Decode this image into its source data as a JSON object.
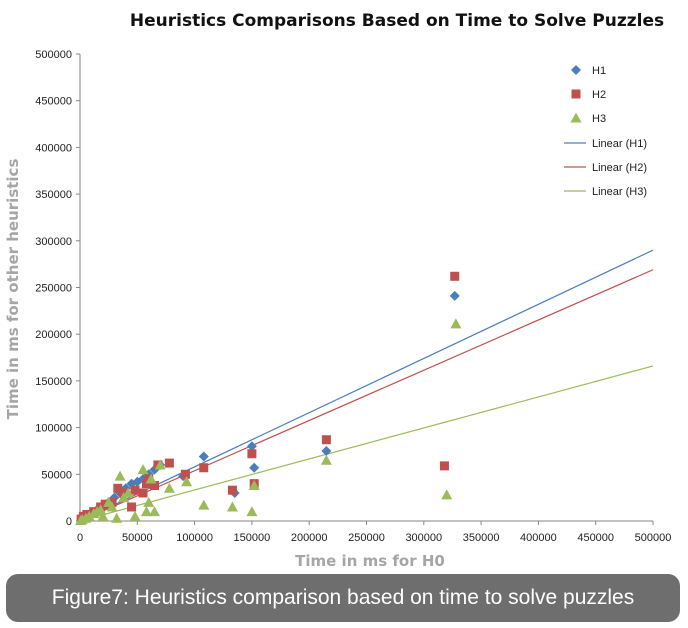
{
  "chart_data": {
    "type": "scatter",
    "title": "Heuristics Comparisons Based on Time to Solve Puzzles",
    "xlabel": "Time in ms for H0",
    "ylabel": "Time in ms for other heuristics",
    "xlim": [
      0,
      500000
    ],
    "ylim": [
      0,
      500000
    ],
    "x_ticks": [
      0,
      50000,
      100000,
      150000,
      200000,
      250000,
      300000,
      350000,
      400000,
      450000,
      500000
    ],
    "y_ticks": [
      0,
      50000,
      100000,
      150000,
      200000,
      250000,
      300000,
      350000,
      400000,
      450000,
      500000
    ],
    "x_tick_labels": [
      "0",
      "50000",
      "100000",
      "150000",
      "200000",
      "250000",
      "300000",
      "350000",
      "400000",
      "450000",
      "500000"
    ],
    "y_tick_labels": [
      "0",
      "50000",
      "100000",
      "150000",
      "200000",
      "250000",
      "300000",
      "350000",
      "400000",
      "450000",
      "500000"
    ],
    "grid": false,
    "legend_position": "top-right",
    "series": [
      {
        "name": "H1",
        "marker": "diamond",
        "color": "#4a7ebb",
        "points": [
          [
            2000,
            1500
          ],
          [
            5000,
            4000
          ],
          [
            8000,
            6000
          ],
          [
            10000,
            9000
          ],
          [
            15000,
            12000
          ],
          [
            20000,
            15000
          ],
          [
            25000,
            20000
          ],
          [
            30000,
            25000
          ],
          [
            35000,
            30000
          ],
          [
            40000,
            35000
          ],
          [
            45000,
            40000
          ],
          [
            50000,
            42000
          ],
          [
            55000,
            45000
          ],
          [
            60000,
            50000
          ],
          [
            65000,
            55000
          ],
          [
            70000,
            60000
          ],
          [
            90000,
            48000
          ],
          [
            108000,
            69000
          ],
          [
            135000,
            30000
          ],
          [
            150000,
            80000
          ],
          [
            152000,
            57000
          ],
          [
            215000,
            75000
          ],
          [
            327000,
            241000
          ]
        ]
      },
      {
        "name": "H2",
        "marker": "square",
        "color": "#c0504d",
        "points": [
          [
            1000,
            2000
          ],
          [
            3000,
            5000
          ],
          [
            6000,
            7000
          ],
          [
            12000,
            10000
          ],
          [
            18000,
            15000
          ],
          [
            22000,
            18000
          ],
          [
            28000,
            20000
          ],
          [
            33000,
            35000
          ],
          [
            38000,
            30000
          ],
          [
            45000,
            15000
          ],
          [
            48000,
            33000
          ],
          [
            55000,
            30000
          ],
          [
            58000,
            40000
          ],
          [
            60000,
            45000
          ],
          [
            65000,
            38000
          ],
          [
            68000,
            60000
          ],
          [
            78000,
            62000
          ],
          [
            92000,
            50000
          ],
          [
            108000,
            57000
          ],
          [
            133000,
            33000
          ],
          [
            150000,
            72000
          ],
          [
            152000,
            40000
          ],
          [
            215000,
            87000
          ],
          [
            318000,
            59000
          ],
          [
            327000,
            262000
          ]
        ]
      },
      {
        "name": "H3",
        "marker": "triangle",
        "color": "#9bbb59",
        "points": [
          [
            500,
            500
          ],
          [
            2000,
            1500
          ],
          [
            5000,
            3000
          ],
          [
            8000,
            5000
          ],
          [
            12000,
            8000
          ],
          [
            15000,
            10000
          ],
          [
            18000,
            12000
          ],
          [
            20000,
            5000
          ],
          [
            25000,
            20000
          ],
          [
            28000,
            15000
          ],
          [
            32000,
            3000
          ],
          [
            35000,
            48000
          ],
          [
            38000,
            25000
          ],
          [
            42000,
            30000
          ],
          [
            48000,
            5000
          ],
          [
            55000,
            55000
          ],
          [
            58000,
            10000
          ],
          [
            60000,
            20000
          ],
          [
            62000,
            45000
          ],
          [
            65000,
            10000
          ],
          [
            70000,
            60000
          ],
          [
            78000,
            35000
          ],
          [
            93000,
            42000
          ],
          [
            108000,
            17000
          ],
          [
            133000,
            15000
          ],
          [
            150000,
            10000
          ],
          [
            152000,
            38000
          ],
          [
            215000,
            65000
          ],
          [
            320000,
            28000
          ],
          [
            328000,
            211000
          ]
        ]
      }
    ],
    "trendlines": [
      {
        "name": "Linear (H1)",
        "color": "#4a7ebb",
        "slope": 0.58,
        "intercept": 0
      },
      {
        "name": "Linear (H2)",
        "color": "#c0504d",
        "slope": 0.538,
        "intercept": 0
      },
      {
        "name": "Linear (H3)",
        "color": "#9bbb59",
        "slope": 0.332,
        "intercept": 0
      }
    ]
  },
  "caption": "Figure7: Heuristics comparison based on time to solve puzzles"
}
